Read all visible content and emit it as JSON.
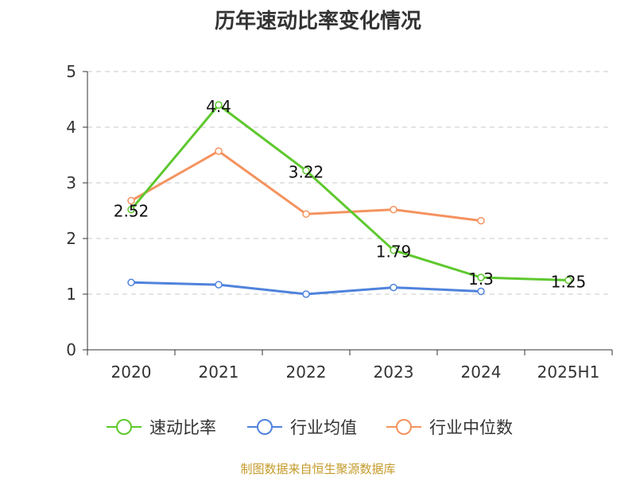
{
  "chart_data": {
    "type": "line",
    "title": "历年速动比率变化情况",
    "categories": [
      "2020",
      "2021",
      "2022",
      "2023",
      "2024",
      "2025H1"
    ],
    "y_ticks": [
      "0",
      "1",
      "2",
      "3",
      "4",
      "5"
    ],
    "ylim": [
      0,
      5
    ],
    "grid": true,
    "legend_position": "bottom",
    "series": [
      {
        "name": "速动比率",
        "color": "#5ec82e",
        "values": [
          2.52,
          4.4,
          3.22,
          1.79,
          1.3,
          1.25
        ],
        "labels": [
          "2.52",
          "4.4",
          "3.22",
          "1.79",
          "1.3",
          "1.25"
        ]
      },
      {
        "name": "行业均值",
        "color": "#4f83dc",
        "values": [
          1.21,
          1.17,
          1.0,
          1.12,
          1.05,
          null
        ]
      },
      {
        "name": "行业中位数",
        "color": "#f4935f",
        "values": [
          2.68,
          3.57,
          2.44,
          2.52,
          2.32,
          null
        ]
      }
    ]
  },
  "source": "制图数据来自恒生聚源数据库"
}
